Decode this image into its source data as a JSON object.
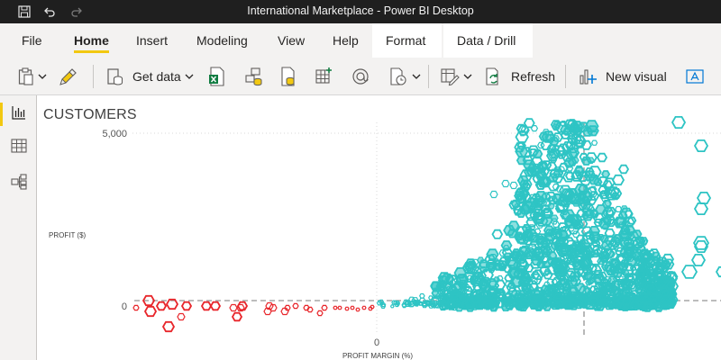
{
  "window": {
    "title": "International Marketplace - Power BI Desktop"
  },
  "ribbon": {
    "tabs": [
      {
        "label": "File"
      },
      {
        "label": "Home"
      },
      {
        "label": "Insert"
      },
      {
        "label": "Modeling"
      },
      {
        "label": "View"
      },
      {
        "label": "Help"
      },
      {
        "label": "Format"
      },
      {
        "label": "Data / Drill"
      }
    ],
    "active_tab": "Home",
    "toolbar": {
      "get_data_label": "Get data",
      "refresh_label": "Refresh",
      "new_visual_label": "New visual"
    }
  },
  "colors": {
    "accent": "#f2c811",
    "positive_series": "#2ec4c4",
    "negative_series": "#e8262b",
    "titlebar": "#1f1f1f"
  },
  "visual": {
    "title": "CUSTOMERS",
    "y_axis_label": "PROFIT ($)",
    "x_axis_label": "PROFIT MARGIN (%)"
  },
  "chart_data": {
    "type": "scatter",
    "title": "CUSTOMERS",
    "xlabel": "PROFIT MARGIN (%)",
    "ylabel": "PROFIT ($)",
    "y_ticks": [
      "5,000",
      "0"
    ],
    "x_ticks": [
      "0"
    ],
    "ylim": [
      -900,
      5200
    ],
    "grid": true,
    "reference_lines": {
      "horizontal_at_y": 0,
      "vertical": "dashed grey line right of x=0"
    },
    "marker": "hexagon",
    "color_rule": "red when profit margin < 0, teal when profit margin >= 0",
    "series": [
      {
        "color": "#e8262b",
        "description": "customers with negative profit margin, profit near 0"
      },
      {
        "color": "#2ec4c4",
        "description": "customers with positive profit margin, profit from 0 to above 5,000"
      }
    ]
  }
}
